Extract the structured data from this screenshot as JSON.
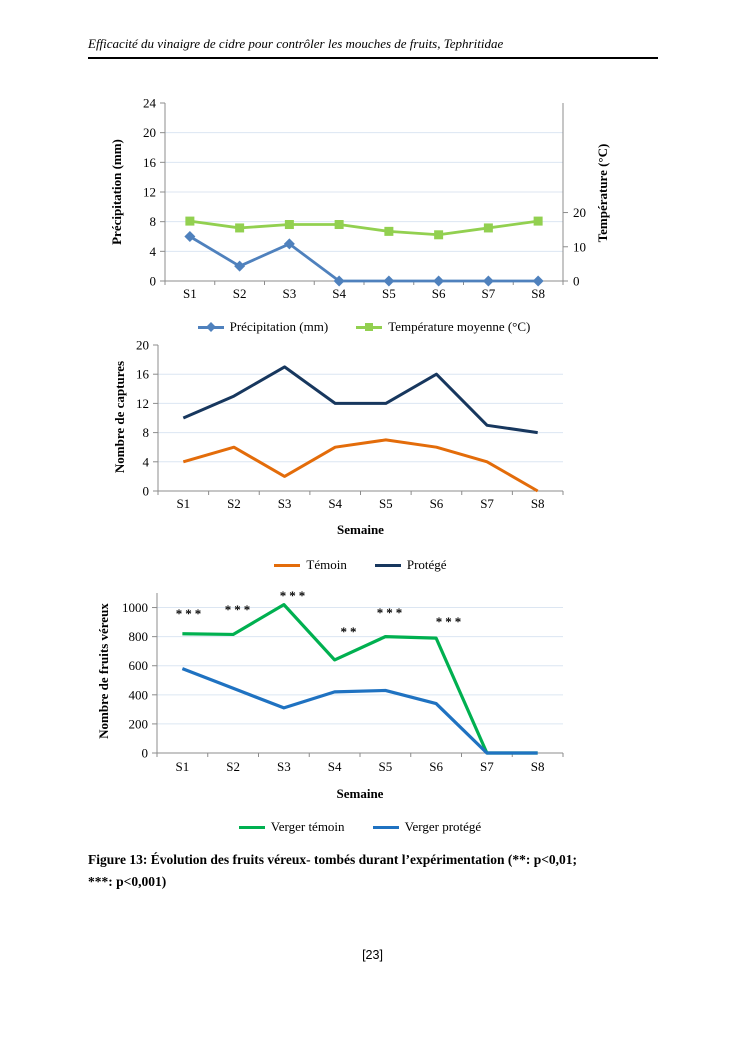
{
  "page": {
    "header_title": "Efficacité du vinaigre de cidre pour contrôler les mouches de fruits, Tephritidae",
    "page_number": "[23]"
  },
  "caption": {
    "line1": "Figure 13: Évolution des fruits véreux- tombés durant l’expérimentation (**: p<0,01;",
    "line2": "***: p<0,001)"
  },
  "chart_data": [
    {
      "type": "line",
      "categories": [
        "S1",
        "S2",
        "S3",
        "S4",
        "S5",
        "S6",
        "S7",
        "S8"
      ],
      "series": [
        {
          "name": "Précipitation (mm)",
          "axis": "left",
          "color": "#4f81bd",
          "marker": "diamond",
          "values": [
            6,
            2,
            5,
            0,
            0,
            0,
            0,
            0
          ]
        },
        {
          "name": "Température moyenne (°C)",
          "axis": "right",
          "color": "#92d050",
          "marker": "square",
          "values": [
            17.5,
            15.5,
            16.5,
            16.5,
            14.5,
            13.5,
            15.5,
            17.5
          ]
        }
      ],
      "ylabel_left": "Précipitation (mm)",
      "ylabel_right": "Température (°C)",
      "ylim_left": [
        0,
        24
      ],
      "yticks_left": [
        0,
        4,
        8,
        12,
        16,
        20,
        24
      ],
      "ylim_right": [
        0,
        52
      ],
      "yticks_right": [
        0,
        10,
        20
      ],
      "xlabel": "",
      "grid": true,
      "legend_position": "bottom"
    },
    {
      "type": "line",
      "categories": [
        "S1",
        "S2",
        "S3",
        "S4",
        "S5",
        "S6",
        "S7",
        "S8"
      ],
      "series": [
        {
          "name": "Témoin",
          "color": "#e36c0a",
          "values": [
            4,
            6,
            2,
            6,
            7,
            6,
            4,
            0
          ]
        },
        {
          "name": "Protégé",
          "color": "#17375e",
          "values": [
            10,
            13,
            17,
            12,
            12,
            16,
            9,
            8
          ]
        }
      ],
      "ylabel": "Nombre de captures",
      "xlabel": "Semaine",
      "ylim": [
        0,
        20
      ],
      "yticks": [
        0,
        4,
        8,
        12,
        16,
        20
      ],
      "grid": true,
      "legend_position": "bottom"
    },
    {
      "type": "line",
      "categories": [
        "S1",
        "S2",
        "S3",
        "S4",
        "S5",
        "S6",
        "S7",
        "S8"
      ],
      "series": [
        {
          "name": "Verger témoin",
          "color": "#00b050",
          "values": [
            820,
            815,
            1020,
            640,
            800,
            790,
            0,
            0
          ]
        },
        {
          "name": "Verger protégé",
          "color": "#1f72c1",
          "values": [
            580,
            445,
            310,
            420,
            430,
            340,
            0,
            0
          ]
        }
      ],
      "ylabel": "Nombre de fruits véreux",
      "xlabel": "Semaine",
      "ylim": [
        0,
        1100
      ],
      "yticks": [
        0,
        200,
        400,
        600,
        800,
        1000
      ],
      "annotations": [
        {
          "category": "S1",
          "label": "***"
        },
        {
          "category": "S2",
          "label": "***"
        },
        {
          "category": "S3",
          "label": "***"
        },
        {
          "category": "S4",
          "label": "**"
        },
        {
          "category": "S5",
          "label": "***"
        },
        {
          "category": "S6",
          "label": "***"
        }
      ],
      "grid": true,
      "legend_position": "bottom"
    }
  ]
}
